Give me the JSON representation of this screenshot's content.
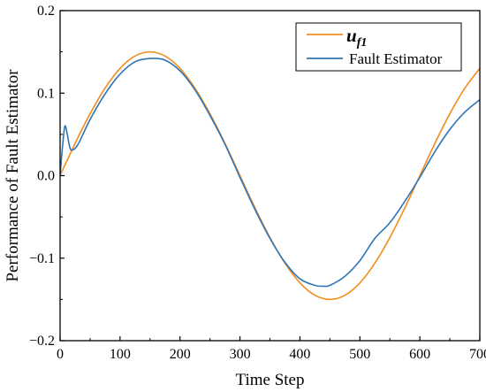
{
  "chart_data": {
    "type": "line",
    "xlabel": "Time Step",
    "ylabel": "Performance of Fault Estimator",
    "xlim": [
      0,
      700
    ],
    "ylim": [
      -0.2,
      0.2
    ],
    "xticks": [
      "0",
      "100",
      "200",
      "300",
      "400",
      "500",
      "600",
      "700"
    ],
    "yticks": [
      "-0.2",
      "-0.1",
      "0.0",
      "0.1",
      "0.2"
    ],
    "grid": false,
    "legend_position": "top-right",
    "series": [
      {
        "name": "u_f1",
        "name_main": "u",
        "name_sub": "f1",
        "color": "#F28C1C",
        "x": [
          0,
          25,
          50,
          75,
          100,
          125,
          150,
          175,
          200,
          225,
          250,
          275,
          300,
          325,
          350,
          375,
          400,
          425,
          450,
          475,
          500,
          525,
          550,
          575,
          600,
          625,
          650,
          675,
          700
        ],
        "y": [
          0.0,
          0.039,
          0.075,
          0.106,
          0.13,
          0.145,
          0.15,
          0.145,
          0.13,
          0.106,
          0.075,
          0.039,
          0.0,
          -0.039,
          -0.075,
          -0.106,
          -0.13,
          -0.145,
          -0.15,
          -0.145,
          -0.13,
          -0.106,
          -0.075,
          -0.039,
          0.0,
          0.039,
          0.075,
          0.106,
          0.13
        ]
      },
      {
        "name": "Fault Estimator",
        "color": "#2E75B6",
        "x": [
          0,
          4,
          8,
          12,
          16,
          20,
          30,
          50,
          75,
          100,
          125,
          150,
          175,
          200,
          225,
          250,
          275,
          300,
          325,
          350,
          375,
          400,
          425,
          440,
          450,
          475,
          500,
          525,
          550,
          575,
          600,
          625,
          650,
          675,
          700
        ],
        "y": [
          0.0,
          0.035,
          0.06,
          0.05,
          0.035,
          0.031,
          0.038,
          0.068,
          0.099,
          0.123,
          0.138,
          0.142,
          0.14,
          0.127,
          0.104,
          0.073,
          0.038,
          -0.002,
          -0.041,
          -0.076,
          -0.105,
          -0.125,
          -0.133,
          -0.134,
          -0.133,
          -0.122,
          -0.103,
          -0.076,
          -0.057,
          -0.031,
          -0.002,
          0.029,
          0.056,
          0.077,
          0.092
        ]
      }
    ]
  }
}
